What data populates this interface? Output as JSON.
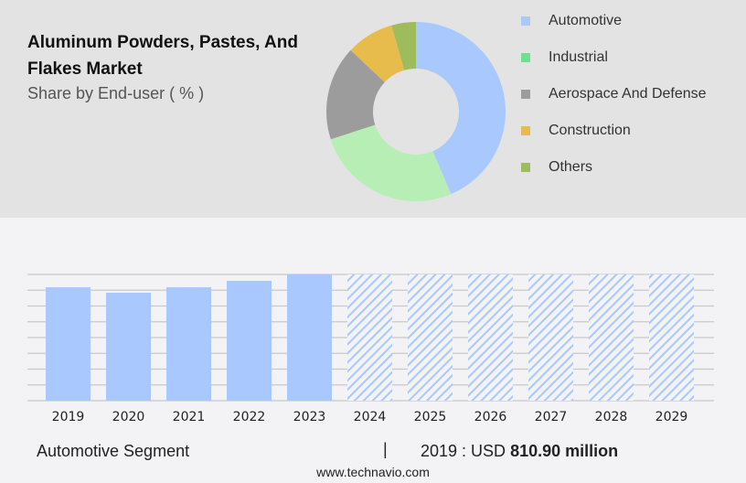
{
  "title": "Aluminum Powders, Pastes, And Flakes Market",
  "subtitle": "Share by End-user ( % )",
  "chart_data": [
    {
      "type": "pie",
      "subtype": "donut",
      "title": "Share by End-user ( % )",
      "categories": [
        "Automotive",
        "Industrial",
        "Aerospace And Defense",
        "Construction",
        "Others"
      ],
      "values": [
        43.6,
        26.4,
        17,
        8.6,
        4.4
      ],
      "colors": [
        "#a8c8fe",
        "#b6eeb6",
        "#9c9c9c",
        "#e8bb4d",
        "#9fbc5c"
      ],
      "legend_colors": [
        "#a8c8fe",
        "#6ee08e",
        "#9c9c9c",
        "#e8bb4d",
        "#9fbc5c"
      ],
      "legend": "right"
    },
    {
      "type": "bar",
      "categories": [
        "2019",
        "2020",
        "2021",
        "2022",
        "2023",
        "2024",
        "2025",
        "2026",
        "2027",
        "2028",
        "2029"
      ],
      "values": [
        810.9,
        771.7,
        810.9,
        856.7,
        902.5,
        null,
        null,
        null,
        null,
        null,
        null
      ],
      "forecast": [
        "2024",
        "2025",
        "2026",
        "2027",
        "2028",
        "2029"
      ],
      "ylim": [
        0,
        902.5
      ],
      "grid": true,
      "color": "#a8c8fe",
      "ylabel": "",
      "xlabel": ""
    }
  ],
  "footer": {
    "segment": "Automotive Segment",
    "separator": "|",
    "value_prefix": "2019 : USD",
    "value": "810.90 million"
  },
  "site": "www.technavio.com"
}
